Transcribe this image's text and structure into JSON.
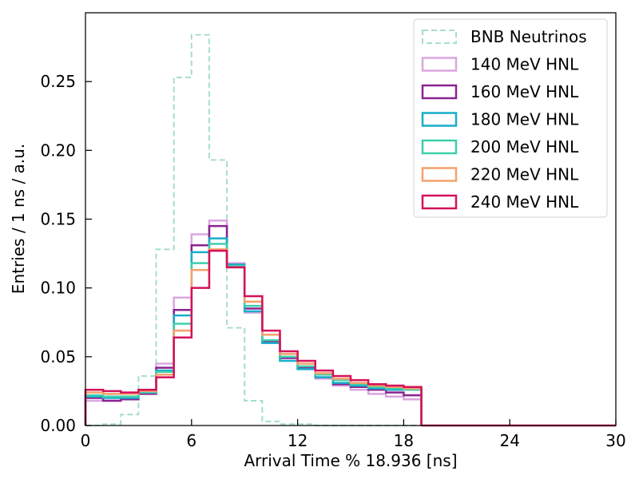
{
  "chart_data": {
    "type": "histogram-step",
    "xlabel": "Arrival Time % 18.936 [ns]",
    "ylabel": "Entries / 1 ns / a.u.",
    "xlim": [
      0,
      30
    ],
    "ylim": [
      0,
      0.3
    ],
    "xticks": [
      0,
      6,
      12,
      18,
      24,
      30
    ],
    "xtick_labels": [
      "0",
      "6",
      "12",
      "18",
      "24",
      "30"
    ],
    "yticks": [
      0.0,
      0.05,
      0.1,
      0.15,
      0.2,
      0.25
    ],
    "ytick_labels": [
      "0.00",
      "0.05",
      "0.10",
      "0.15",
      "0.20",
      "0.25"
    ],
    "grid": false,
    "legend_position": "top-right",
    "bin_edges": [
      0,
      1,
      2,
      3,
      4,
      5,
      6,
      7,
      8,
      9,
      10,
      11,
      12,
      13,
      14,
      15,
      16,
      17,
      18,
      19
    ],
    "series": [
      {
        "name": "BNB Neutrinos",
        "color": "#a6ddd0",
        "dashed": true,
        "width": 2,
        "values": [
          0.0,
          0.001,
          0.008,
          0.036,
          0.128,
          0.253,
          0.284,
          0.193,
          0.071,
          0.018,
          0.003,
          0.001,
          0.001,
          0.0,
          0.0,
          0.0,
          0.0,
          0.0,
          0.0
        ]
      },
      {
        "name": "140 MeV HNL",
        "color": "#dba6e0",
        "dashed": false,
        "width": 2.5,
        "values": [
          0.018,
          0.018,
          0.019,
          0.025,
          0.045,
          0.093,
          0.139,
          0.149,
          0.118,
          0.082,
          0.06,
          0.049,
          0.041,
          0.034,
          0.029,
          0.026,
          0.023,
          0.021,
          0.019
        ]
      },
      {
        "name": "160 MeV HNL",
        "color": "#8a2390",
        "dashed": false,
        "width": 2.5,
        "values": [
          0.02,
          0.018,
          0.019,
          0.023,
          0.042,
          0.084,
          0.131,
          0.145,
          0.117,
          0.085,
          0.061,
          0.049,
          0.042,
          0.035,
          0.03,
          0.028,
          0.026,
          0.024,
          0.022
        ]
      },
      {
        "name": "180 MeV HNL",
        "color": "#17aec8",
        "dashed": false,
        "width": 2.5,
        "values": [
          0.021,
          0.02,
          0.02,
          0.024,
          0.04,
          0.08,
          0.126,
          0.136,
          0.117,
          0.083,
          0.06,
          0.047,
          0.041,
          0.035,
          0.031,
          0.029,
          0.027,
          0.026,
          0.026
        ]
      },
      {
        "name": "200 MeV HNL",
        "color": "#3ecfab",
        "dashed": false,
        "width": 2.5,
        "values": [
          0.022,
          0.021,
          0.021,
          0.024,
          0.039,
          0.074,
          0.118,
          0.132,
          0.116,
          0.087,
          0.062,
          0.05,
          0.043,
          0.037,
          0.033,
          0.03,
          0.028,
          0.027,
          0.026
        ]
      },
      {
        "name": "220 MeV HNL",
        "color": "#f7a06a",
        "dashed": false,
        "width": 2.5,
        "values": [
          0.024,
          0.023,
          0.023,
          0.025,
          0.037,
          0.069,
          0.113,
          0.128,
          0.115,
          0.09,
          0.066,
          0.052,
          0.045,
          0.038,
          0.034,
          0.031,
          0.029,
          0.028,
          0.027
        ]
      },
      {
        "name": "240 MeV HNL",
        "color": "#d3115b",
        "dashed": false,
        "width": 2.5,
        "values": [
          0.026,
          0.025,
          0.024,
          0.026,
          0.035,
          0.064,
          0.1,
          0.127,
          0.115,
          0.094,
          0.069,
          0.054,
          0.047,
          0.04,
          0.036,
          0.033,
          0.03,
          0.029,
          0.028
        ]
      }
    ]
  }
}
